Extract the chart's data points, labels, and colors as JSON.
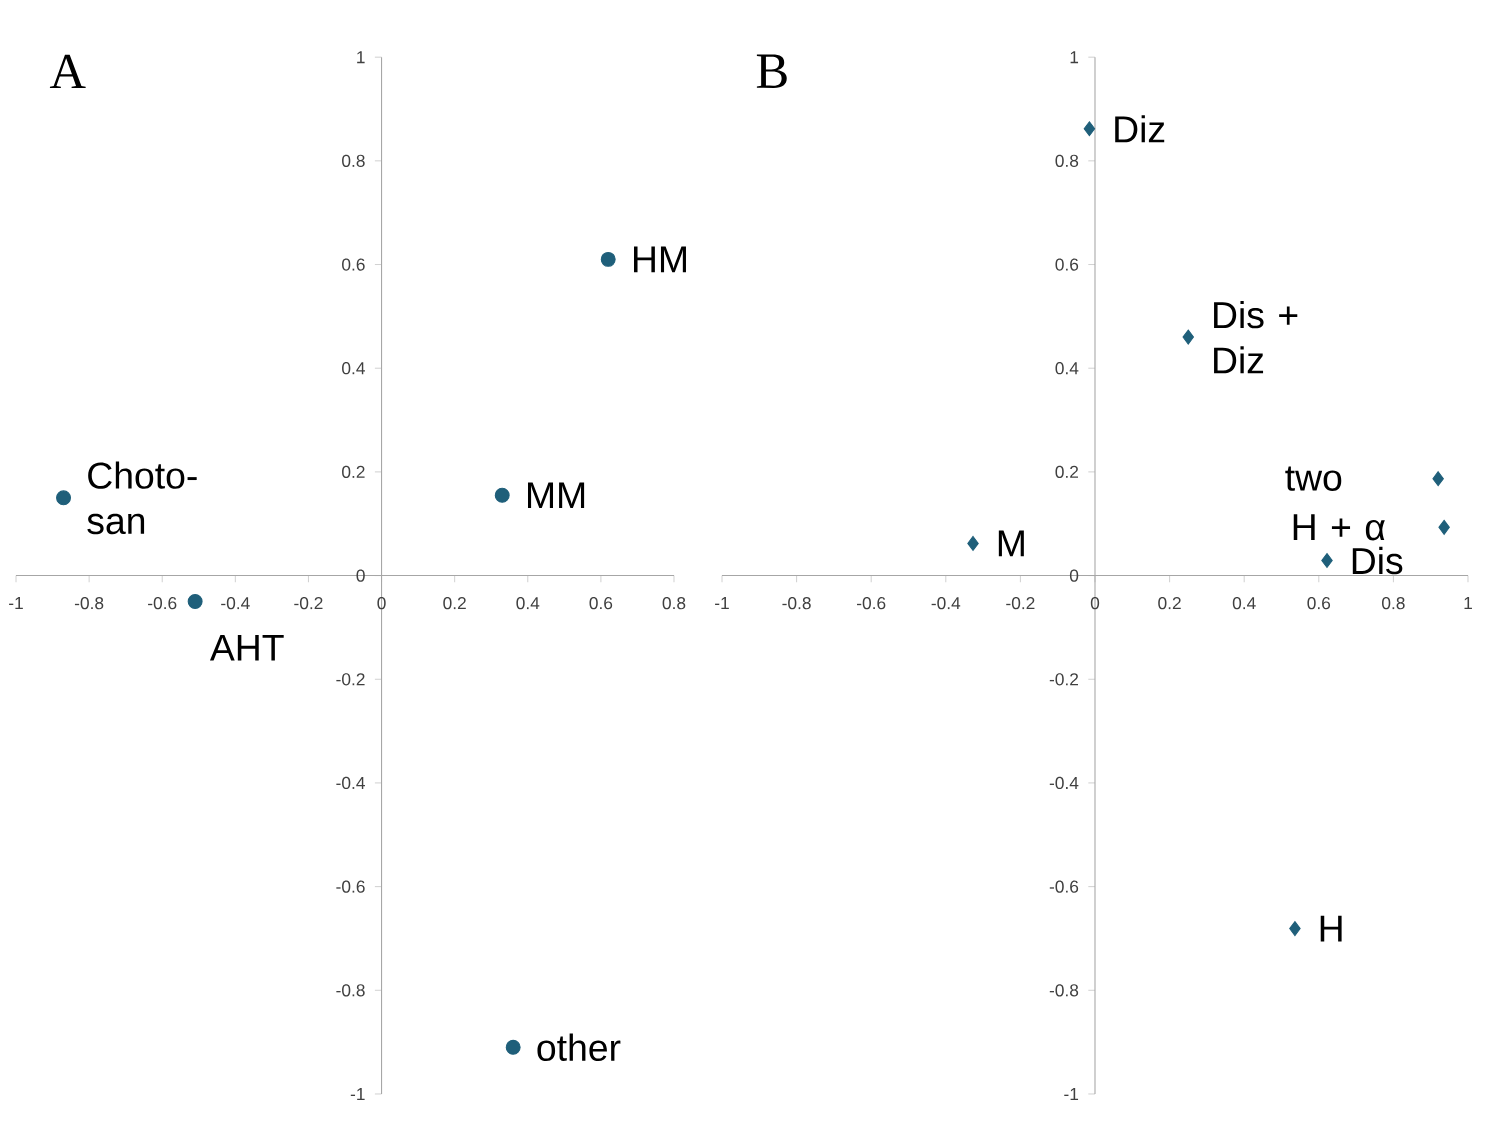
{
  "chart_data": [
    {
      "type": "scatter",
      "title": "A",
      "x": [
        -0.87,
        -0.51,
        0.33,
        0.62,
        0.36
      ],
      "values": [
        0.15,
        -0.05,
        0.155,
        0.61,
        -0.91
      ],
      "color": "#1f5f7a",
      "marker": "circle",
      "xlim": [
        -1,
        0.8
      ],
      "ylim": [
        -1,
        1
      ],
      "xticks": [
        -1,
        -0.8,
        -0.6,
        -0.4,
        -0.2,
        0,
        0.2,
        0.4,
        0.6,
        0.8
      ],
      "yticks": [
        -1,
        -0.8,
        -0.6,
        -0.4,
        -0.2,
        0,
        0.2,
        0.4,
        0.6,
        0.8,
        1
      ],
      "annotations": [
        {
          "text": "Choto-san",
          "x": -0.87,
          "y": 0.15
        },
        {
          "text": "AHT",
          "x": -0.51,
          "y": -0.05
        },
        {
          "text": "MM",
          "x": 0.33,
          "y": 0.155
        },
        {
          "text": "HM",
          "x": 0.62,
          "y": 0.61
        },
        {
          "text": "other",
          "x": 0.36,
          "y": -0.91
        }
      ]
    },
    {
      "type": "scatter",
      "title": "B",
      "x": [
        -0.015,
        0.25,
        -0.327,
        0.622,
        0.92,
        0.936,
        0.536
      ],
      "values": [
        0.862,
        0.46,
        0.062,
        0.029,
        0.187,
        0.093,
        -0.681
      ],
      "color": "#1f5f7a",
      "marker": "diamond",
      "xlim": [
        -1,
        1
      ],
      "ylim": [
        -1,
        1
      ],
      "xticks": [
        -1,
        -0.8,
        -0.6,
        -0.4,
        -0.2,
        0,
        0.2,
        0.4,
        0.6,
        0.8,
        1
      ],
      "yticks": [
        -1,
        -0.8,
        -0.6,
        -0.4,
        -0.2,
        0,
        0.2,
        0.4,
        0.6,
        0.8,
        1
      ],
      "annotations": [
        {
          "text": "Diz",
          "x": -0.015,
          "y": 0.862
        },
        {
          "text": "Dis + Diz",
          "x": 0.25,
          "y": 0.46
        },
        {
          "text": "M",
          "x": -0.327,
          "y": 0.062
        },
        {
          "text": "Dis",
          "x": 0.622,
          "y": 0.029
        },
        {
          "text": "two",
          "x": 0.92,
          "y": 0.187
        },
        {
          "text": "H + α",
          "x": 0.936,
          "y": 0.093
        },
        {
          "text": "H",
          "x": 0.536,
          "y": -0.681
        }
      ]
    }
  ]
}
